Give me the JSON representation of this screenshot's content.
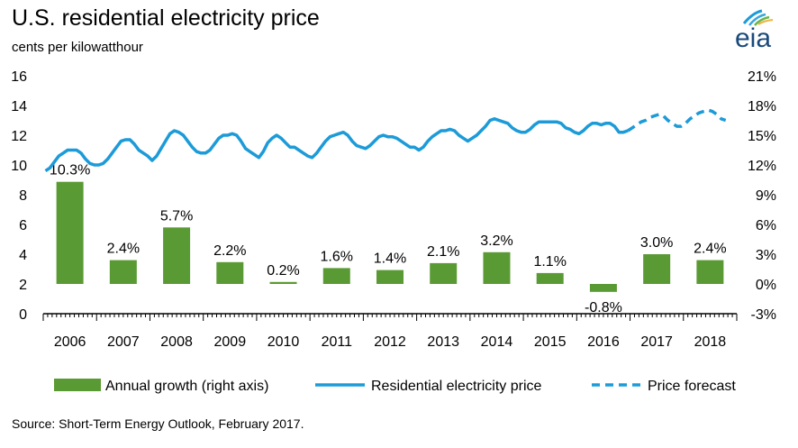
{
  "header": {
    "title": "U.S. residential electricity price",
    "subtitle": "cents per kilowatthour",
    "logo_text": "eia"
  },
  "source": "Source: Short-Term Energy Outlook, February 2017.",
  "colors": {
    "bar": "#5a9a34",
    "line": "#1c9bd8",
    "axis": "#000000"
  },
  "chart_data": {
    "type": "bar",
    "categories": [
      "2006",
      "2007",
      "2008",
      "2009",
      "2010",
      "2011",
      "2012",
      "2013",
      "2014",
      "2015",
      "2016",
      "2017",
      "2018"
    ],
    "left_axis": {
      "ylim": [
        0,
        16
      ],
      "ticks": [
        "0",
        "2",
        "4",
        "6",
        "8",
        "10",
        "12",
        "14",
        "16"
      ]
    },
    "right_axis": {
      "ylim": [
        -3,
        21
      ],
      "ticks": [
        "-3%",
        "0%",
        "3%",
        "6%",
        "9%",
        "12%",
        "15%",
        "18%",
        "21%"
      ]
    },
    "bar_series": {
      "name": "Annual growth (right axis)",
      "values": [
        10.3,
        2.4,
        5.7,
        2.2,
        0.2,
        1.6,
        1.4,
        2.1,
        3.2,
        1.1,
        -0.8,
        3.0,
        2.4
      ],
      "labels": [
        "10.3%",
        "2.4%",
        "5.7%",
        "2.2%",
        "0.2%",
        "1.6%",
        "1.4%",
        "2.1%",
        "3.2%",
        "1.1%",
        "-0.8%",
        "3.0%",
        "2.4%"
      ]
    },
    "line_series": {
      "name": "Residential electricity price",
      "values": [
        9.6,
        9.8,
        10.2,
        10.6,
        10.8,
        11.0,
        11.0,
        11.0,
        10.8,
        10.4,
        10.1,
        10.0,
        10.0,
        10.1,
        10.4,
        10.8,
        11.2,
        11.6,
        11.7,
        11.7,
        11.4,
        11.0,
        10.8,
        10.6,
        10.3,
        10.6,
        11.1,
        11.6,
        12.1,
        12.3,
        12.2,
        12.0,
        11.6,
        11.2,
        10.9,
        10.8,
        10.8,
        11.0,
        11.4,
        11.8,
        12.0,
        12.0,
        12.1,
        12.0,
        11.6,
        11.1,
        10.9,
        10.7,
        10.5,
        10.9,
        11.5,
        11.8,
        12.0,
        11.8,
        11.5,
        11.2,
        11.2,
        11.0,
        10.8,
        10.6,
        10.5,
        10.8,
        11.2,
        11.6,
        11.9,
        12.0,
        12.1,
        12.2,
        12.0,
        11.6,
        11.3,
        11.2,
        11.1,
        11.3,
        11.6,
        11.9,
        12.0,
        11.9,
        11.9,
        11.8,
        11.6,
        11.4,
        11.2,
        11.2,
        11.0,
        11.2,
        11.6,
        11.9,
        12.1,
        12.3,
        12.3,
        12.4,
        12.3,
        12.0,
        11.8,
        11.6,
        11.8,
        12.0,
        12.3,
        12.6,
        13.0,
        13.1,
        13.0,
        12.9,
        12.8,
        12.5,
        12.3,
        12.2,
        12.2,
        12.4,
        12.7,
        12.9,
        12.9,
        12.9,
        12.9,
        12.9,
        12.8,
        12.5,
        12.4,
        12.2,
        12.1,
        12.3,
        12.6,
        12.8,
        12.8,
        12.7,
        12.8,
        12.8,
        12.6,
        12.2,
        12.2,
        12.3
      ],
      "x_start": "2006-01",
      "step": "month"
    },
    "forecast_series": {
      "name": "Price forecast",
      "values": [
        12.5,
        12.7,
        12.9,
        13.0,
        13.2,
        13.3,
        13.4,
        13.3,
        13.0,
        12.8,
        12.6,
        12.6,
        12.8,
        13.1,
        13.3,
        13.5,
        13.6,
        13.7,
        13.6,
        13.4,
        13.1,
        13.0
      ],
      "x_start": "2017-02",
      "step": "month"
    },
    "legend": {
      "position": "bottom",
      "items": [
        "Annual growth (right axis)",
        "Residential electricity price",
        "Price forecast"
      ]
    },
    "grid": false
  }
}
